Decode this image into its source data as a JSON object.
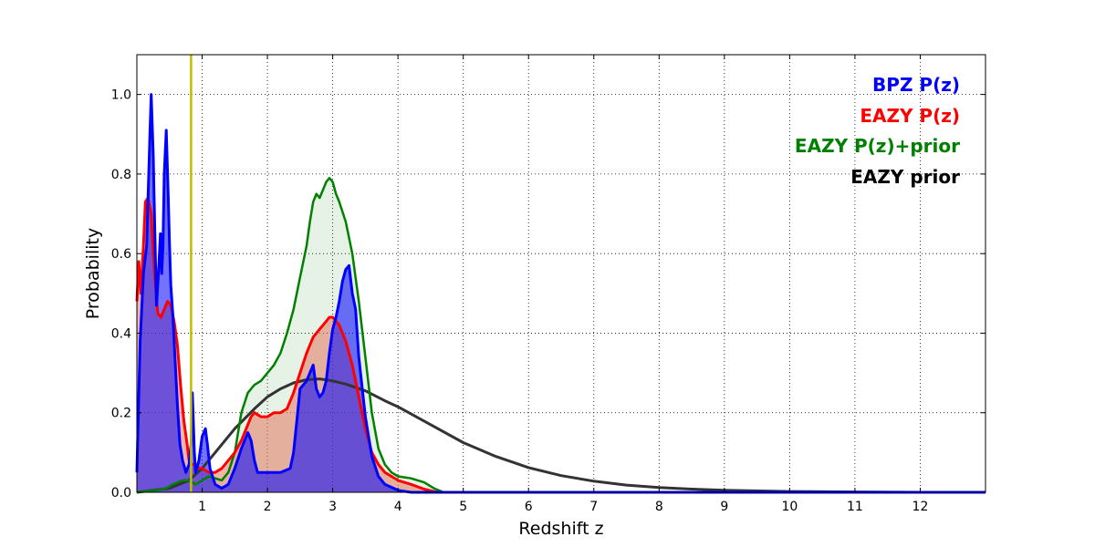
{
  "chart_data": {
    "type": "area",
    "title": "",
    "xlabel": "Redshift z",
    "ylabel": "Probability",
    "xlim": [
      0,
      13
    ],
    "ylim": [
      0,
      1.1
    ],
    "xticks": [
      1,
      2,
      3,
      4,
      5,
      6,
      7,
      8,
      9,
      10,
      11,
      12
    ],
    "yticks": [
      0.0,
      0.2,
      0.4,
      0.6,
      0.8,
      1.0
    ],
    "xtick_labels": [
      "1",
      "2",
      "3",
      "4",
      "5",
      "6",
      "7",
      "8",
      "9",
      "10",
      "11",
      "12"
    ],
    "ytick_labels": [
      "0.0",
      "0.2",
      "0.4",
      "0.6",
      "0.8",
      "1.0"
    ],
    "grid": true,
    "legend_position": "top-right",
    "vline": {
      "x": 0.83,
      "color": "#bfbf00"
    },
    "series": [
      {
        "name": "BPZ P(z)",
        "color": "#0000ff",
        "fill": "rgba(0,0,255,0.55)",
        "stroke_width": 3,
        "x": [
          0,
          0.05,
          0.1,
          0.15,
          0.2,
          0.22,
          0.25,
          0.28,
          0.3,
          0.33,
          0.36,
          0.38,
          0.4,
          0.42,
          0.45,
          0.48,
          0.5,
          0.52,
          0.55,
          0.58,
          0.62,
          0.66,
          0.7,
          0.75,
          0.8,
          0.83,
          0.85,
          0.88,
          0.9,
          0.95,
          1.0,
          1.05,
          1.08,
          1.12,
          1.2,
          1.3,
          1.4,
          1.5,
          1.6,
          1.7,
          1.75,
          1.8,
          1.85,
          1.9,
          2.0,
          2.2,
          2.35,
          2.4,
          2.45,
          2.5,
          2.6,
          2.65,
          2.7,
          2.75,
          2.8,
          2.85,
          2.9,
          2.95,
          3.0,
          3.05,
          3.1,
          3.15,
          3.2,
          3.25,
          3.3,
          3.35,
          3.4,
          3.5,
          3.6,
          3.7,
          3.8,
          4.0,
          4.2,
          4.4,
          4.6,
          5.0,
          7.0,
          10.0,
          13.0
        ],
        "y": [
          0.05,
          0.38,
          0.55,
          0.62,
          0.9,
          1.0,
          0.85,
          0.62,
          0.47,
          0.55,
          0.65,
          0.55,
          0.62,
          0.8,
          0.91,
          0.75,
          0.62,
          0.52,
          0.45,
          0.35,
          0.22,
          0.12,
          0.08,
          0.05,
          0.07,
          0.12,
          0.25,
          0.1,
          0.05,
          0.08,
          0.14,
          0.16,
          0.12,
          0.06,
          0.02,
          0.01,
          0.02,
          0.06,
          0.11,
          0.15,
          0.13,
          0.08,
          0.05,
          0.05,
          0.05,
          0.05,
          0.06,
          0.1,
          0.18,
          0.26,
          0.28,
          0.3,
          0.32,
          0.26,
          0.24,
          0.25,
          0.28,
          0.35,
          0.41,
          0.44,
          0.48,
          0.53,
          0.56,
          0.57,
          0.5,
          0.46,
          0.34,
          0.19,
          0.09,
          0.04,
          0.02,
          0.005,
          0.0,
          0.0,
          0.0,
          0.0,
          0.0,
          0.0,
          0.0
        ]
      },
      {
        "name": "EAZY P(z)",
        "color": "#ff0000",
        "fill": "rgba(230,120,100,0.55)",
        "stroke_width": 3,
        "x": [
          0,
          0.03,
          0.06,
          0.1,
          0.13,
          0.17,
          0.22,
          0.27,
          0.32,
          0.37,
          0.42,
          0.47,
          0.52,
          0.57,
          0.62,
          0.67,
          0.72,
          0.77,
          0.8,
          0.85,
          0.9,
          0.95,
          1.0,
          1.1,
          1.2,
          1.3,
          1.4,
          1.5,
          1.6,
          1.7,
          1.75,
          1.8,
          1.9,
          2.0,
          2.1,
          2.2,
          2.3,
          2.4,
          2.5,
          2.6,
          2.7,
          2.8,
          2.9,
          2.95,
          3.0,
          3.1,
          3.2,
          3.3,
          3.4,
          3.5,
          3.6,
          3.7,
          3.8,
          4.0,
          4.2,
          4.4,
          4.6,
          5.0,
          8.0,
          13.0
        ],
        "y": [
          0.48,
          0.58,
          0.5,
          0.62,
          0.73,
          0.74,
          0.7,
          0.55,
          0.45,
          0.44,
          0.46,
          0.48,
          0.47,
          0.43,
          0.37,
          0.27,
          0.18,
          0.12,
          0.08,
          0.07,
          0.07,
          0.06,
          0.06,
          0.05,
          0.05,
          0.06,
          0.08,
          0.1,
          0.13,
          0.17,
          0.19,
          0.2,
          0.19,
          0.19,
          0.2,
          0.2,
          0.21,
          0.25,
          0.3,
          0.35,
          0.39,
          0.41,
          0.43,
          0.44,
          0.44,
          0.42,
          0.38,
          0.32,
          0.24,
          0.16,
          0.1,
          0.07,
          0.05,
          0.03,
          0.02,
          0.008,
          0.0,
          0.0,
          0.0,
          0.0
        ]
      },
      {
        "name": "EAZY P(z)+prior",
        "color": "#008000",
        "fill": "rgba(0,128,0,0.10)",
        "stroke_width": 2.5,
        "x": [
          0,
          0.3,
          0.45,
          0.55,
          0.7,
          0.8,
          0.9,
          1.0,
          1.1,
          1.2,
          1.3,
          1.4,
          1.5,
          1.6,
          1.7,
          1.75,
          1.8,
          1.9,
          2.0,
          2.1,
          2.2,
          2.3,
          2.4,
          2.5,
          2.6,
          2.65,
          2.7,
          2.75,
          2.8,
          2.85,
          2.9,
          2.95,
          3.0,
          3.05,
          3.1,
          3.2,
          3.3,
          3.4,
          3.5,
          3.6,
          3.7,
          3.8,
          3.9,
          4.0,
          4.2,
          4.4,
          4.55,
          4.7,
          5.0,
          8.0,
          13.0
        ],
        "y": [
          0.0,
          0.005,
          0.01,
          0.02,
          0.03,
          0.03,
          0.02,
          0.03,
          0.04,
          0.035,
          0.03,
          0.05,
          0.1,
          0.2,
          0.25,
          0.26,
          0.27,
          0.28,
          0.3,
          0.32,
          0.35,
          0.4,
          0.46,
          0.54,
          0.62,
          0.68,
          0.73,
          0.75,
          0.74,
          0.76,
          0.78,
          0.79,
          0.78,
          0.75,
          0.73,
          0.68,
          0.6,
          0.48,
          0.34,
          0.2,
          0.11,
          0.07,
          0.05,
          0.04,
          0.035,
          0.025,
          0.01,
          0.0,
          0.0,
          0.0,
          0.0
        ]
      },
      {
        "name": "EAZY prior",
        "color": "#333333",
        "fill": "none",
        "stroke_width": 3,
        "x": [
          0,
          0.5,
          0.8,
          1.0,
          1.2,
          1.5,
          1.8,
          2.0,
          2.2,
          2.4,
          2.6,
          2.8,
          3.0,
          3.2,
          3.5,
          3.8,
          4.0,
          4.5,
          5.0,
          5.5,
          6.0,
          6.5,
          7.0,
          7.5,
          8.0,
          8.5,
          9.0,
          10.0,
          11.0,
          12.0,
          13.0
        ],
        "y": [
          0.0,
          0.01,
          0.03,
          0.06,
          0.1,
          0.16,
          0.21,
          0.24,
          0.26,
          0.275,
          0.283,
          0.285,
          0.28,
          0.272,
          0.255,
          0.23,
          0.215,
          0.17,
          0.125,
          0.09,
          0.062,
          0.042,
          0.028,
          0.018,
          0.012,
          0.008,
          0.005,
          0.002,
          0.001,
          0.0,
          0.0
        ]
      }
    ]
  }
}
